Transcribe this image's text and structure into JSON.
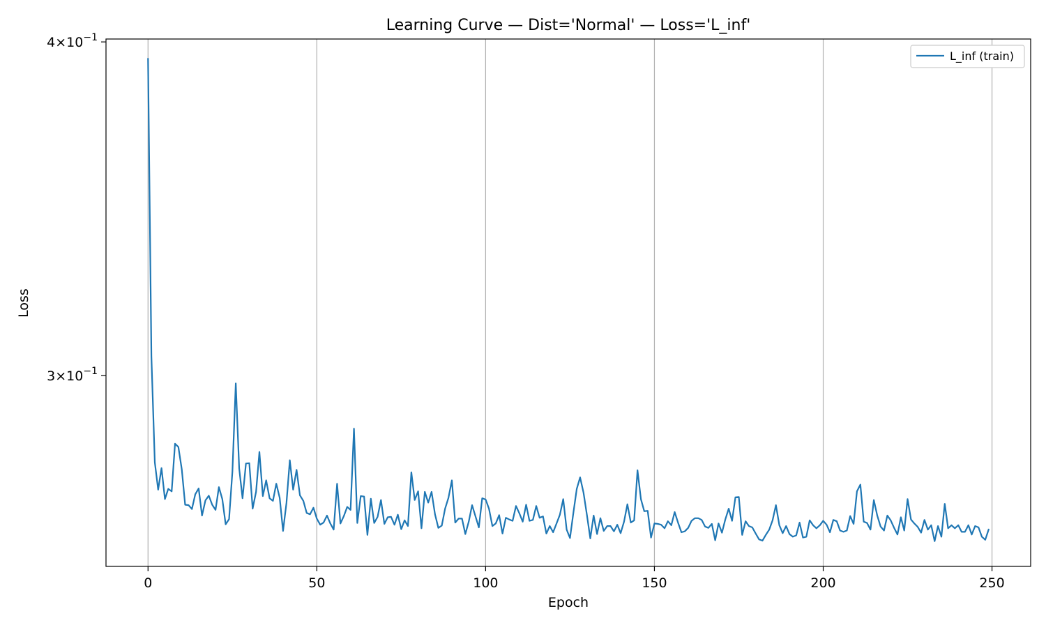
{
  "chart_data": {
    "type": "line",
    "title": "Learning Curve — Dist='Normal' — Loss='L_inf'",
    "xlabel": "Epoch",
    "ylabel": "Loss",
    "xlim": [
      -12.45,
      261.45
    ],
    "ylim": [
      0.2545,
      0.401
    ],
    "y_scale": "log",
    "grid": "x-major",
    "legend_position": "top-right",
    "x_ticks": [
      0,
      50,
      100,
      150,
      200,
      250
    ],
    "x_tick_labels": [
      "0",
      "50",
      "100",
      "150",
      "200",
      "250"
    ],
    "y_ticks": [
      0.4,
      0.3
    ],
    "y_tick_labels": [
      {
        "mantissa": "4",
        "base": "10",
        "exp": "−1"
      },
      {
        "mantissa": "3",
        "base": "10",
        "exp": "−1"
      }
    ],
    "colors": {
      "series": "#1f77b4",
      "grid": "#b0b0b0"
    },
    "series": [
      {
        "name": "L_inf (train)",
        "values": [
          0.3942,
          0.3051,
          0.2784,
          0.2719,
          0.277,
          0.2697,
          0.2721,
          0.2715,
          0.2829,
          0.2821,
          0.2767,
          0.2684,
          0.2683,
          0.2674,
          0.2708,
          0.2722,
          0.2659,
          0.2694,
          0.2705,
          0.2684,
          0.2672,
          0.2725,
          0.2697,
          0.2639,
          0.2651,
          0.2762,
          0.298,
          0.2769,
          0.2699,
          0.2781,
          0.2782,
          0.2675,
          0.2714,
          0.2809,
          0.2704,
          0.2741,
          0.2699,
          0.2693,
          0.2733,
          0.27,
          0.2624,
          0.2688,
          0.2789,
          0.2719,
          0.2766,
          0.2706,
          0.2693,
          0.2665,
          0.2662,
          0.2677,
          0.2652,
          0.2638,
          0.2643,
          0.2659,
          0.2641,
          0.2627,
          0.2733,
          0.2641,
          0.2658,
          0.2679,
          0.2672,
          0.2866,
          0.2642,
          0.2704,
          0.2703,
          0.2615,
          0.2698,
          0.2642,
          0.2656,
          0.2695,
          0.264,
          0.2655,
          0.2656,
          0.2638,
          0.2661,
          0.2628,
          0.2648,
          0.2635,
          0.276,
          0.2695,
          0.2715,
          0.263,
          0.2714,
          0.2689,
          0.2714,
          0.2662,
          0.2631,
          0.2636,
          0.2675,
          0.27,
          0.2741,
          0.2643,
          0.2652,
          0.2652,
          0.2617,
          0.2645,
          0.2683,
          0.2657,
          0.2632,
          0.2699,
          0.2696,
          0.2675,
          0.2635,
          0.2641,
          0.266,
          0.2618,
          0.2654,
          0.265,
          0.2647,
          0.2681,
          0.2664,
          0.2645,
          0.2684,
          0.2647,
          0.2649,
          0.2681,
          0.2654,
          0.2657,
          0.2618,
          0.2635,
          0.2621,
          0.2641,
          0.2661,
          0.2697,
          0.2627,
          0.2608,
          0.2666,
          0.2721,
          0.2748,
          0.2712,
          0.2661,
          0.2607,
          0.2659,
          0.2617,
          0.2653,
          0.2624,
          0.2635,
          0.2635,
          0.2623,
          0.2638,
          0.2619,
          0.2645,
          0.2685,
          0.2643,
          0.2648,
          0.2765,
          0.2697,
          0.2669,
          0.267,
          0.2609,
          0.2641,
          0.264,
          0.2638,
          0.263,
          0.2646,
          0.2637,
          0.2667,
          0.2643,
          0.2621,
          0.2623,
          0.2631,
          0.2647,
          0.2653,
          0.2653,
          0.2649,
          0.2634,
          0.2631,
          0.264,
          0.2603,
          0.2641,
          0.262,
          0.265,
          0.2675,
          0.2647,
          0.2701,
          0.2702,
          0.2615,
          0.2646,
          0.2635,
          0.2632,
          0.2618,
          0.2605,
          0.2602,
          0.2615,
          0.2627,
          0.2648,
          0.2683,
          0.2637,
          0.2619,
          0.2635,
          0.2617,
          0.2611,
          0.2614,
          0.2643,
          0.2609,
          0.2611,
          0.2648,
          0.2637,
          0.263,
          0.2637,
          0.2647,
          0.2638,
          0.2621,
          0.2649,
          0.2646,
          0.2625,
          0.2622,
          0.2625,
          0.2658,
          0.264,
          0.2715,
          0.2731,
          0.2645,
          0.2642,
          0.2627,
          0.2695,
          0.2659,
          0.2634,
          0.2625,
          0.2659,
          0.2648,
          0.2631,
          0.2616,
          0.2655,
          0.2625,
          0.2697,
          0.265,
          0.2641,
          0.2633,
          0.262,
          0.2649,
          0.2627,
          0.2637,
          0.2601,
          0.2635,
          0.2611,
          0.2686,
          0.263,
          0.2637,
          0.263,
          0.2637,
          0.2622,
          0.2622,
          0.2637,
          0.2616,
          0.2635,
          0.2632,
          0.2611,
          0.2604,
          0.2627
        ]
      }
    ]
  }
}
